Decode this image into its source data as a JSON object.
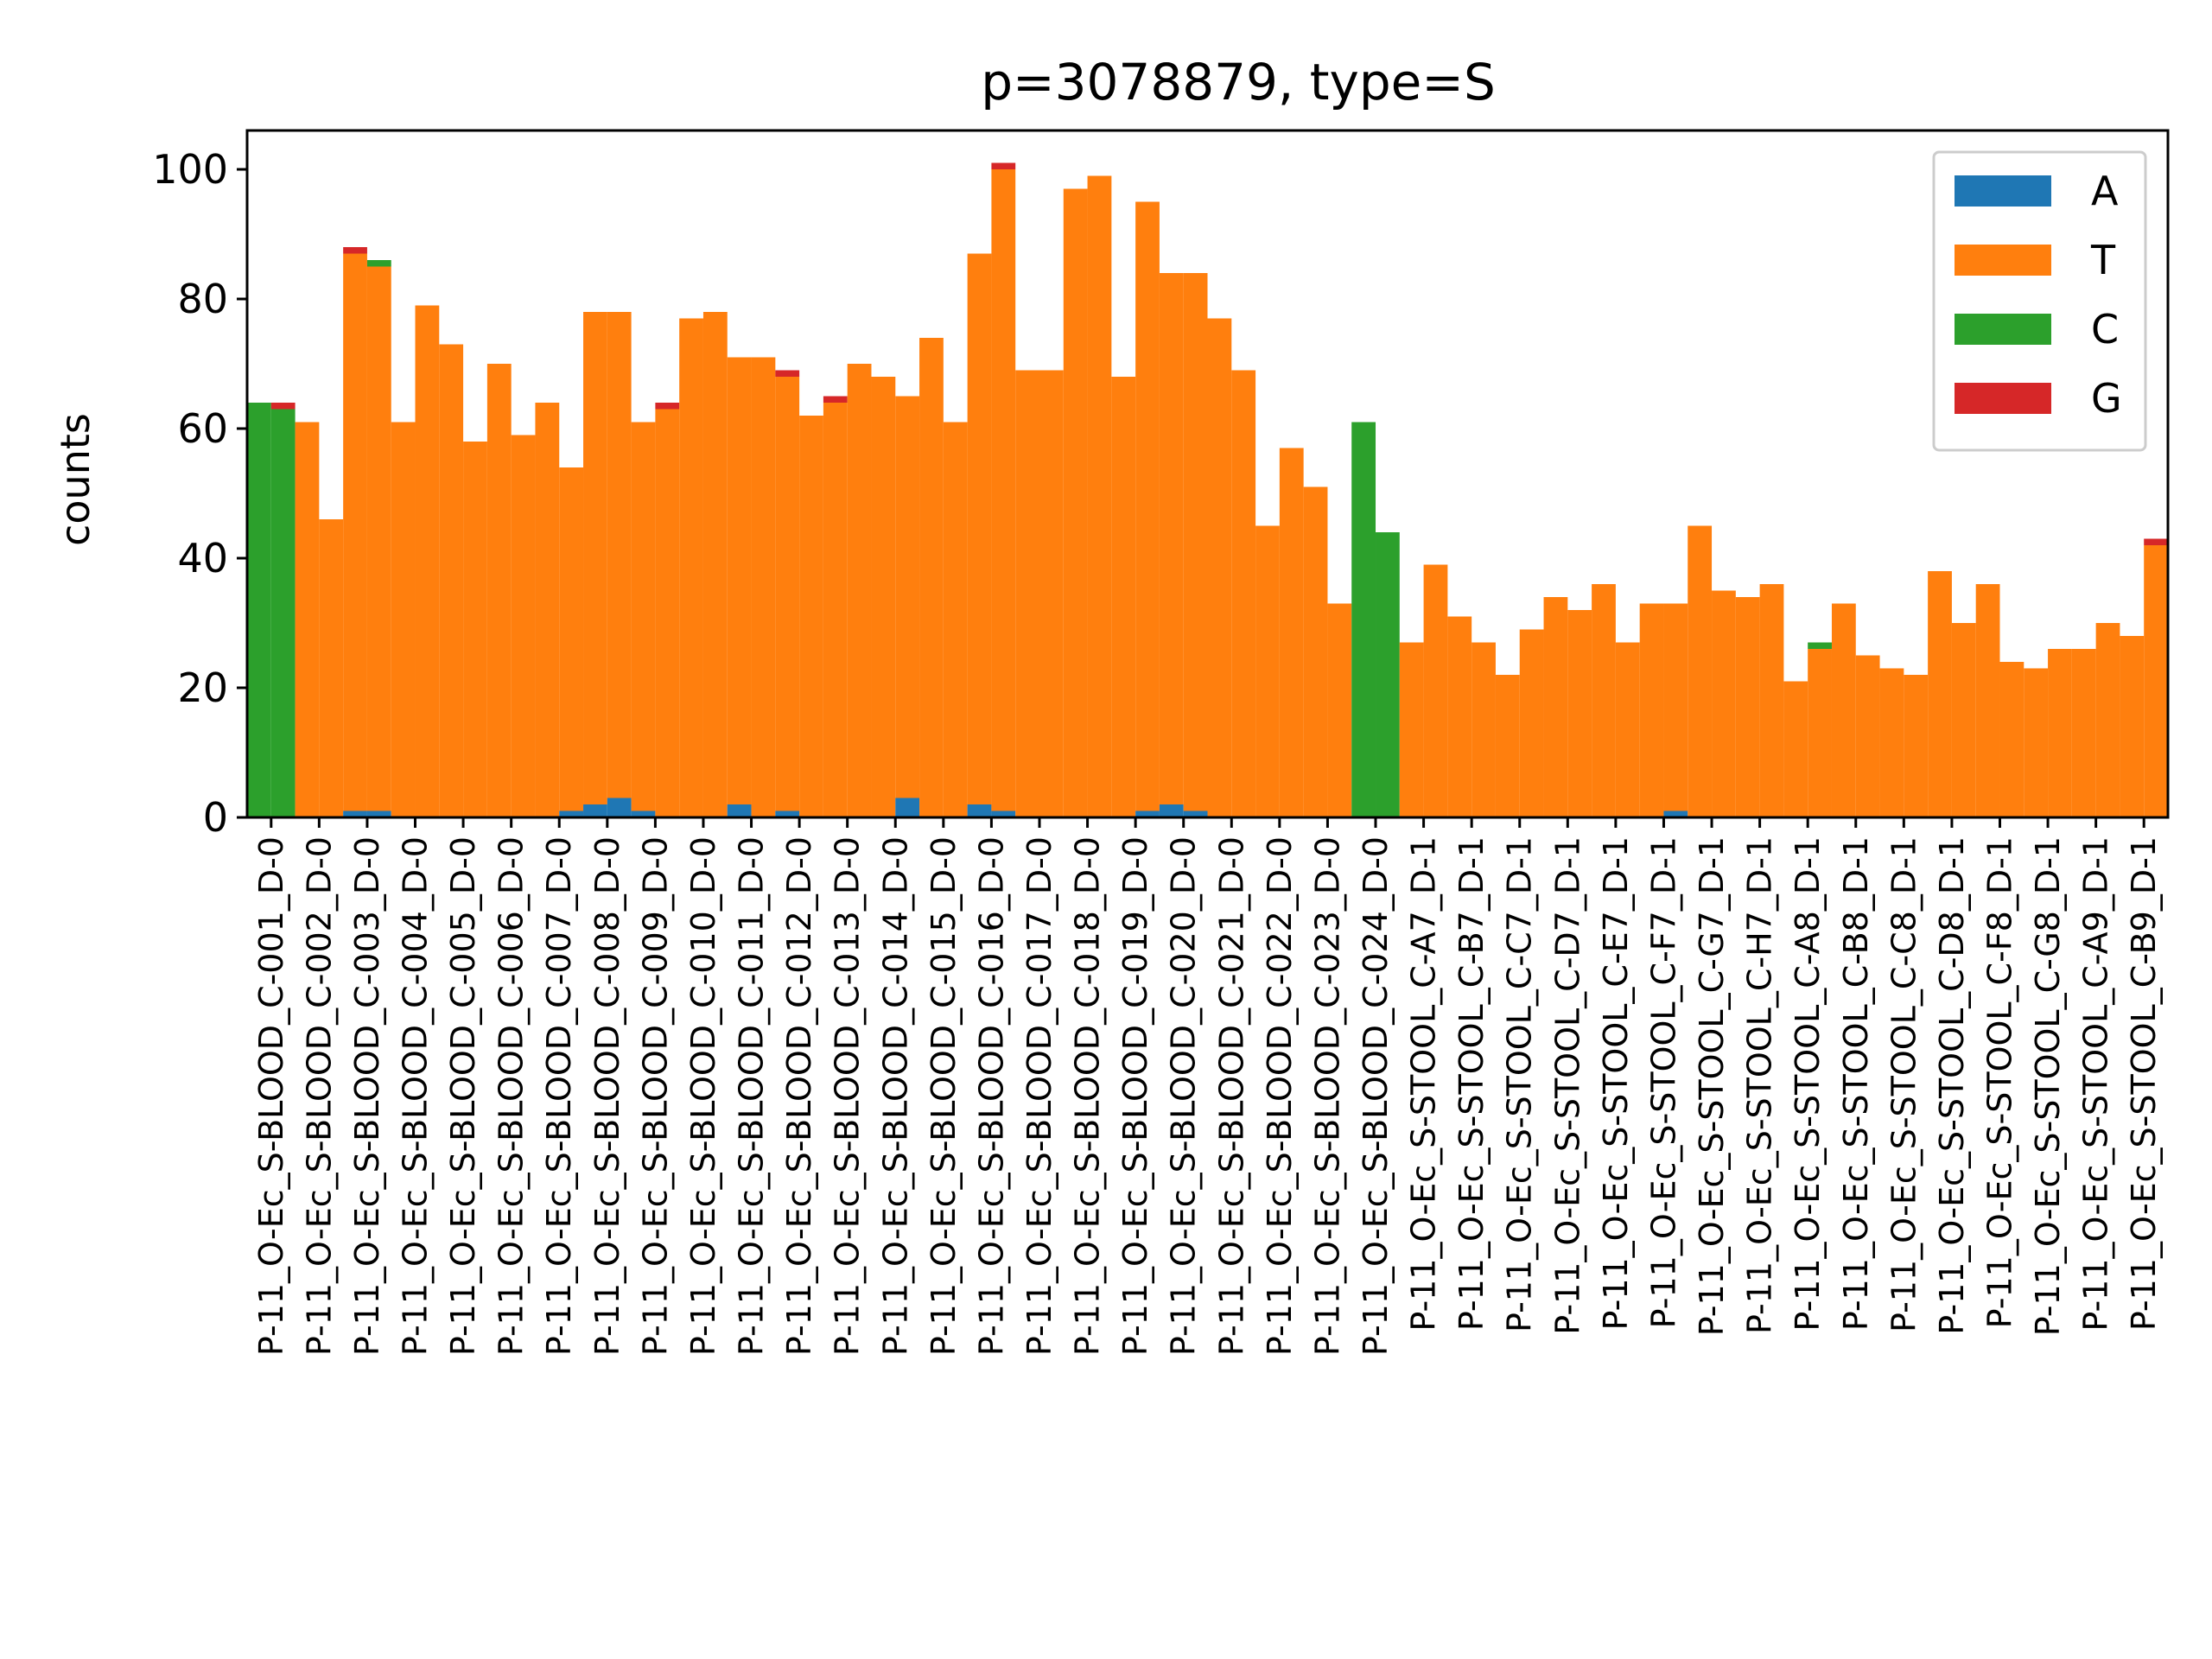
{
  "chart_data": {
    "type": "bar",
    "title": "p=3078879, type=S",
    "xlabel": "",
    "ylabel": "counts",
    "ylim": [
      0,
      106
    ],
    "yticks": [
      0,
      20,
      40,
      60,
      80,
      100
    ],
    "stacked": true,
    "bars_per_category": 2,
    "grid": false,
    "legend_position": "top-right",
    "categories": [
      "P-11_O-Ec_S-BLOOD_C-001_D-0",
      "P-11_O-Ec_S-BLOOD_C-002_D-0",
      "P-11_O-Ec_S-BLOOD_C-003_D-0",
      "P-11_O-Ec_S-BLOOD_C-004_D-0",
      "P-11_O-Ec_S-BLOOD_C-005_D-0",
      "P-11_O-Ec_S-BLOOD_C-006_D-0",
      "P-11_O-Ec_S-BLOOD_C-007_D-0",
      "P-11_O-Ec_S-BLOOD_C-008_D-0",
      "P-11_O-Ec_S-BLOOD_C-009_D-0",
      "P-11_O-Ec_S-BLOOD_C-010_D-0",
      "P-11_O-Ec_S-BLOOD_C-011_D-0",
      "P-11_O-Ec_S-BLOOD_C-012_D-0",
      "P-11_O-Ec_S-BLOOD_C-013_D-0",
      "P-11_O-Ec_S-BLOOD_C-014_D-0",
      "P-11_O-Ec_S-BLOOD_C-015_D-0",
      "P-11_O-Ec_S-BLOOD_C-016_D-0",
      "P-11_O-Ec_S-BLOOD_C-017_D-0",
      "P-11_O-Ec_S-BLOOD_C-018_D-0",
      "P-11_O-Ec_S-BLOOD_C-019_D-0",
      "P-11_O-Ec_S-BLOOD_C-020_D-0",
      "P-11_O-Ec_S-BLOOD_C-021_D-0",
      "P-11_O-Ec_S-BLOOD_C-022_D-0",
      "P-11_O-Ec_S-BLOOD_C-023_D-0",
      "P-11_O-Ec_S-BLOOD_C-024_D-0",
      "P-11_O-Ec_S-STOOL_C-A7_D-1",
      "P-11_O-Ec_S-STOOL_C-B7_D-1",
      "P-11_O-Ec_S-STOOL_C-C7_D-1",
      "P-11_O-Ec_S-STOOL_C-D7_D-1",
      "P-11_O-Ec_S-STOOL_C-E7_D-1",
      "P-11_O-Ec_S-STOOL_C-F7_D-1",
      "P-11_O-Ec_S-STOOL_C-G7_D-1",
      "P-11_O-Ec_S-STOOL_C-H7_D-1",
      "P-11_O-Ec_S-STOOL_C-A8_D-1",
      "P-11_O-Ec_S-STOOL_C-B8_D-1",
      "P-11_O-Ec_S-STOOL_C-C8_D-1",
      "P-11_O-Ec_S-STOOL_C-D8_D-1",
      "P-11_O-Ec_S-STOOL_C-F8_D-1",
      "P-11_O-Ec_S-STOOL_C-G8_D-1",
      "P-11_O-Ec_S-STOOL_C-A9_D-1",
      "P-11_O-Ec_S-STOOL_C-B9_D-1"
    ],
    "series": [
      {
        "name": "A",
        "color": "#1f77b4",
        "values": [
          [
            0,
            0
          ],
          [
            0,
            0
          ],
          [
            1,
            1
          ],
          [
            0,
            0
          ],
          [
            0,
            0
          ],
          [
            0,
            0
          ],
          [
            0,
            1
          ],
          [
            2,
            3
          ],
          [
            1,
            0
          ],
          [
            0,
            0
          ],
          [
            2,
            0
          ],
          [
            1,
            0
          ],
          [
            0,
            0
          ],
          [
            0,
            3
          ],
          [
            0,
            0
          ],
          [
            2,
            1
          ],
          [
            0,
            0
          ],
          [
            0,
            0
          ],
          [
            0,
            1
          ],
          [
            2,
            1
          ],
          [
            0,
            0
          ],
          [
            0,
            0
          ],
          [
            0,
            0
          ],
          [
            0,
            0
          ],
          [
            0,
            0
          ],
          [
            0,
            0
          ],
          [
            0,
            0
          ],
          [
            0,
            0
          ],
          [
            0,
            0
          ],
          [
            0,
            1
          ],
          [
            0,
            0
          ],
          [
            0,
            0
          ],
          [
            0,
            0
          ],
          [
            0,
            0
          ],
          [
            0,
            0
          ],
          [
            0,
            0
          ],
          [
            0,
            0
          ],
          [
            0,
            0
          ],
          [
            0,
            0
          ],
          [
            0,
            0
          ]
        ]
      },
      {
        "name": "T",
        "color": "#ff7f0e",
        "values": [
          [
            0,
            0
          ],
          [
            61,
            46
          ],
          [
            86,
            84
          ],
          [
            61,
            79
          ],
          [
            73,
            58
          ],
          [
            70,
            59
          ],
          [
            64,
            53
          ],
          [
            76,
            75
          ],
          [
            60,
            63
          ],
          [
            77,
            78
          ],
          [
            69,
            71
          ],
          [
            67,
            62
          ],
          [
            64,
            70
          ],
          [
            68,
            62
          ],
          [
            74,
            61
          ],
          [
            85,
            99
          ],
          [
            69,
            69
          ],
          [
            97,
            99
          ],
          [
            68,
            94
          ],
          [
            82,
            83
          ],
          [
            77,
            69
          ],
          [
            45,
            57
          ],
          [
            51,
            33
          ],
          [
            0,
            0
          ],
          [
            27,
            39
          ],
          [
            31,
            27
          ],
          [
            22,
            29
          ],
          [
            34,
            32
          ],
          [
            36,
            27
          ],
          [
            33,
            32
          ],
          [
            45,
            35
          ],
          [
            34,
            36
          ],
          [
            21,
            26
          ],
          [
            33,
            25
          ],
          [
            23,
            22
          ],
          [
            38,
            30
          ],
          [
            36,
            24
          ],
          [
            23,
            26
          ],
          [
            26,
            30
          ],
          [
            28,
            42
          ]
        ]
      },
      {
        "name": "C",
        "color": "#2ca02c",
        "values": [
          [
            64,
            63
          ],
          [
            0,
            0
          ],
          [
            0,
            1
          ],
          [
            0,
            0
          ],
          [
            0,
            0
          ],
          [
            0,
            0
          ],
          [
            0,
            0
          ],
          [
            0,
            0
          ],
          [
            0,
            0
          ],
          [
            0,
            0
          ],
          [
            0,
            0
          ],
          [
            0,
            0
          ],
          [
            0,
            0
          ],
          [
            0,
            0
          ],
          [
            0,
            0
          ],
          [
            0,
            0
          ],
          [
            0,
            0
          ],
          [
            0,
            0
          ],
          [
            0,
            0
          ],
          [
            0,
            0
          ],
          [
            0,
            0
          ],
          [
            0,
            0
          ],
          [
            0,
            0
          ],
          [
            61,
            44
          ],
          [
            0,
            0
          ],
          [
            0,
            0
          ],
          [
            0,
            0
          ],
          [
            0,
            0
          ],
          [
            0,
            0
          ],
          [
            0,
            0
          ],
          [
            0,
            0
          ],
          [
            0,
            0
          ],
          [
            0,
            1
          ],
          [
            0,
            0
          ],
          [
            0,
            0
          ],
          [
            0,
            0
          ],
          [
            0,
            0
          ],
          [
            0,
            0
          ],
          [
            0,
            0
          ],
          [
            0,
            0
          ]
        ]
      },
      {
        "name": "G",
        "color": "#d62728",
        "values": [
          [
            0,
            1
          ],
          [
            0,
            0
          ],
          [
            1,
            0
          ],
          [
            0,
            0
          ],
          [
            0,
            0
          ],
          [
            0,
            0
          ],
          [
            0,
            0
          ],
          [
            0,
            0
          ],
          [
            0,
            1
          ],
          [
            0,
            0
          ],
          [
            0,
            0
          ],
          [
            1,
            0
          ],
          [
            1,
            0
          ],
          [
            0,
            0
          ],
          [
            0,
            0
          ],
          [
            0,
            1
          ],
          [
            0,
            0
          ],
          [
            0,
            0
          ],
          [
            0,
            0
          ],
          [
            0,
            0
          ],
          [
            0,
            0
          ],
          [
            0,
            0
          ],
          [
            0,
            0
          ],
          [
            0,
            0
          ],
          [
            0,
            0
          ],
          [
            0,
            0
          ],
          [
            0,
            0
          ],
          [
            0,
            0
          ],
          [
            0,
            0
          ],
          [
            0,
            0
          ],
          [
            0,
            0
          ],
          [
            0,
            0
          ],
          [
            0,
            0
          ],
          [
            0,
            0
          ],
          [
            0,
            0
          ],
          [
            0,
            0
          ],
          [
            0,
            0
          ],
          [
            0,
            0
          ],
          [
            0,
            0
          ],
          [
            0,
            1
          ]
        ]
      }
    ]
  }
}
